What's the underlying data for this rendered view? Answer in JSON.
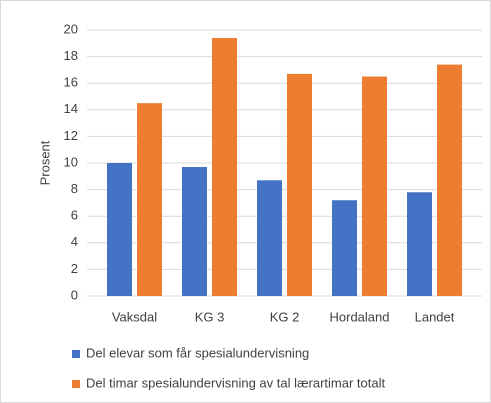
{
  "chart_data": {
    "type": "bar",
    "y_label": "Prosent",
    "categories": [
      "Vaksdal",
      "KG 3",
      "KG 2",
      "Hordaland",
      "Landet"
    ],
    "series": [
      {
        "name": "Del elevar som får spesialundervisning",
        "color": "#4472c4",
        "values": [
          10,
          9.7,
          8.7,
          7.2,
          7.8
        ]
      },
      {
        "name": "Del timar spesialundervisning av tal lærartimar totalt",
        "color": "#ed7d31",
        "values": [
          14.5,
          19.4,
          16.7,
          16.5,
          17.4
        ]
      }
    ],
    "ylim": [
      0,
      20
    ],
    "yticks": [
      0,
      2,
      4,
      6,
      8,
      10,
      12,
      14,
      16,
      18,
      20
    ],
    "grid": true,
    "legend": "bottom"
  }
}
